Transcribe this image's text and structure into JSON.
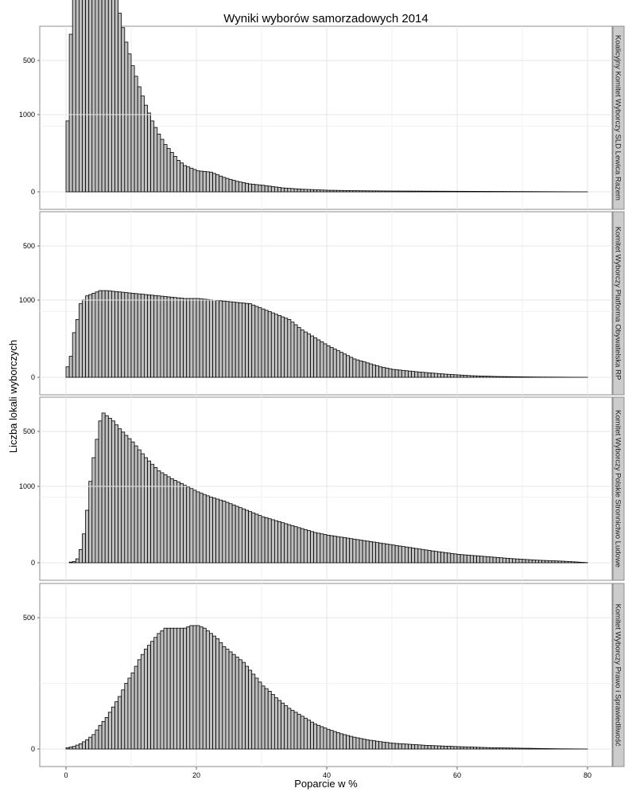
{
  "chart_data": {
    "type": "bar",
    "subtype": "faceted-histogram",
    "title": "Wyniki wyborów samorzadowych 2014",
    "xlabel": "Poparcie w %",
    "ylabel": "Liczba lokali wyborczych",
    "xlim": [
      0,
      80
    ],
    "ylim": [
      0,
      1250
    ],
    "x_ticks": [
      0,
      20,
      40,
      60,
      80
    ],
    "y_ticks": [
      0,
      500,
      1000
    ],
    "bin_width": 0.5,
    "bar_fill": "#bfbfbf",
    "bar_stroke": "#000000",
    "grid": true,
    "facets": [
      {
        "label": "Koalicyjny Komitet Wyborczy SLD Lewica Razem",
        "points": [
          [
            0,
            270
          ],
          [
            0.5,
            600
          ],
          [
            1,
            850
          ],
          [
            1.5,
            1100
          ],
          [
            2,
            1260
          ],
          [
            3,
            1250
          ],
          [
            4,
            1210
          ],
          [
            5,
            1100
          ],
          [
            6,
            950
          ],
          [
            7,
            800
          ],
          [
            8,
            680
          ],
          [
            9,
            570
          ],
          [
            10,
            480
          ],
          [
            11,
            400
          ],
          [
            12,
            330
          ],
          [
            13,
            270
          ],
          [
            14,
            220
          ],
          [
            15,
            180
          ],
          [
            16,
            150
          ],
          [
            17,
            120
          ],
          [
            18,
            100
          ],
          [
            19,
            90
          ],
          [
            20,
            80
          ],
          [
            22,
            75
          ],
          [
            24,
            55
          ],
          [
            26,
            40
          ],
          [
            28,
            30
          ],
          [
            30,
            25
          ],
          [
            33,
            15
          ],
          [
            36,
            10
          ],
          [
            40,
            6
          ],
          [
            45,
            4
          ],
          [
            50,
            3
          ],
          [
            60,
            2
          ],
          [
            70,
            1
          ],
          [
            80,
            0
          ]
        ]
      },
      {
        "label": "Komitet Wyborczy Platforma Obywatelska RP",
        "points": [
          [
            0,
            40
          ],
          [
            0.5,
            80
          ],
          [
            1,
            170
          ],
          [
            1.5,
            220
          ],
          [
            2,
            280
          ],
          [
            3,
            310
          ],
          [
            4,
            320
          ],
          [
            5,
            330
          ],
          [
            6,
            330
          ],
          [
            8,
            325
          ],
          [
            10,
            320
          ],
          [
            12,
            315
          ],
          [
            14,
            310
          ],
          [
            16,
            305
          ],
          [
            18,
            300
          ],
          [
            20,
            300
          ],
          [
            22,
            295
          ],
          [
            24,
            290
          ],
          [
            26,
            285
          ],
          [
            28,
            280
          ],
          [
            30,
            260
          ],
          [
            32,
            240
          ],
          [
            34,
            220
          ],
          [
            36,
            180
          ],
          [
            38,
            150
          ],
          [
            40,
            120
          ],
          [
            42,
            95
          ],
          [
            44,
            70
          ],
          [
            46,
            55
          ],
          [
            48,
            40
          ],
          [
            50,
            30
          ],
          [
            54,
            20
          ],
          [
            58,
            12
          ],
          [
            62,
            6
          ],
          [
            66,
            3
          ],
          [
            72,
            1
          ],
          [
            80,
            0
          ]
        ]
      },
      {
        "label": "Komitet Wyborczy Polskie Stronnictwo Ludowe",
        "points": [
          [
            0,
            0
          ],
          [
            1,
            5
          ],
          [
            1.5,
            15
          ],
          [
            2,
            50
          ],
          [
            2.5,
            110
          ],
          [
            3,
            200
          ],
          [
            3.5,
            310
          ],
          [
            4,
            400
          ],
          [
            4.5,
            470
          ],
          [
            5,
            540
          ],
          [
            5.5,
            570
          ],
          [
            6,
            560
          ],
          [
            7,
            540
          ],
          [
            8,
            510
          ],
          [
            10,
            460
          ],
          [
            12,
            400
          ],
          [
            14,
            350
          ],
          [
            16,
            320
          ],
          [
            18,
            295
          ],
          [
            20,
            270
          ],
          [
            22,
            250
          ],
          [
            24,
            235
          ],
          [
            26,
            215
          ],
          [
            28,
            195
          ],
          [
            30,
            175
          ],
          [
            32,
            160
          ],
          [
            34,
            145
          ],
          [
            36,
            130
          ],
          [
            38,
            115
          ],
          [
            40,
            105
          ],
          [
            44,
            90
          ],
          [
            48,
            75
          ],
          [
            52,
            60
          ],
          [
            56,
            45
          ],
          [
            60,
            32
          ],
          [
            64,
            24
          ],
          [
            68,
            16
          ],
          [
            72,
            10
          ],
          [
            76,
            6
          ],
          [
            80,
            0
          ]
        ]
      },
      {
        "label": "Komitet Wyborczy Prawo i Sprawiedliwość",
        "points": [
          [
            0,
            5
          ],
          [
            1,
            10
          ],
          [
            2,
            20
          ],
          [
            3,
            35
          ],
          [
            4,
            55
          ],
          [
            5,
            90
          ],
          [
            6,
            120
          ],
          [
            7,
            160
          ],
          [
            8,
            200
          ],
          [
            9,
            250
          ],
          [
            10,
            290
          ],
          [
            11,
            340
          ],
          [
            12,
            380
          ],
          [
            13,
            410
          ],
          [
            14,
            440
          ],
          [
            15,
            460
          ],
          [
            16,
            460
          ],
          [
            17,
            460
          ],
          [
            18,
            460
          ],
          [
            19,
            470
          ],
          [
            20,
            470
          ],
          [
            21,
            460
          ],
          [
            22,
            440
          ],
          [
            23,
            420
          ],
          [
            24,
            390
          ],
          [
            25,
            370
          ],
          [
            26,
            350
          ],
          [
            27,
            330
          ],
          [
            28,
            300
          ],
          [
            29,
            270
          ],
          [
            30,
            240
          ],
          [
            31,
            220
          ],
          [
            32,
            195
          ],
          [
            33,
            175
          ],
          [
            34,
            155
          ],
          [
            35,
            140
          ],
          [
            36,
            125
          ],
          [
            37,
            110
          ],
          [
            38,
            95
          ],
          [
            40,
            75
          ],
          [
            42,
            58
          ],
          [
            44,
            45
          ],
          [
            46,
            35
          ],
          [
            48,
            28
          ],
          [
            50,
            22
          ],
          [
            55,
            14
          ],
          [
            60,
            9
          ],
          [
            65,
            5
          ],
          [
            70,
            3
          ],
          [
            75,
            1
          ],
          [
            80,
            0
          ]
        ]
      }
    ]
  }
}
